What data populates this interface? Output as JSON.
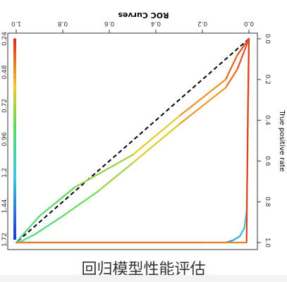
{
  "caption": "回归模型性能评估",
  "chart_data": {
    "type": "line",
    "title": "ROC Curves",
    "ylabel": "True positive rate",
    "xlabel": "",
    "mirrored": "image is rotated 180 degrees",
    "xlim": [
      0,
      1
    ],
    "ylim": [
      0,
      1
    ],
    "x_ticks": [
      "0.0",
      "0.2",
      "0.4",
      "0.6",
      "0.8",
      "1.0"
    ],
    "y_ticks": [
      "0.0",
      "0.2",
      "0.4",
      "0.6",
      "0.8",
      "1.0"
    ],
    "colorbar_ticks": [
      "0.24",
      "0.48",
      "0.72",
      "0.96",
      "1.2",
      "1.44",
      "1.72"
    ],
    "diagonal": true,
    "series": [
      {
        "x": [
          0,
          0.003,
          0.006,
          0.01,
          0.02,
          0.04,
          0.07,
          0.1,
          0.2,
          0.4,
          0.6,
          0.8,
          0.9,
          0.95,
          1.0
        ],
        "y": [
          0,
          0.3,
          0.6,
          0.85,
          0.93,
          0.97,
          0.99,
          1.0,
          1.0,
          1.0,
          1.0,
          1.0,
          1.0,
          1.0,
          1.0
        ]
      },
      {
        "x": [
          0,
          0.05,
          0.1,
          0.3,
          0.5,
          0.65,
          0.8,
          0.92,
          0.98,
          1.0
        ],
        "y": [
          0,
          0.15,
          0.24,
          0.42,
          0.61,
          0.75,
          0.87,
          0.96,
          0.995,
          1.0
        ]
      },
      {
        "x": [
          0,
          0.05,
          0.1,
          0.3,
          0.5,
          0.75,
          0.9,
          0.97,
          1.0
        ],
        "y": [
          0,
          0.08,
          0.2,
          0.38,
          0.57,
          0.73,
          0.87,
          0.96,
          1.0
        ]
      },
      {
        "x": [
          0,
          0.005,
          0.01,
          1.0
        ],
        "y": [
          0,
          0.4,
          1.0,
          1.0
        ]
      }
    ]
  }
}
